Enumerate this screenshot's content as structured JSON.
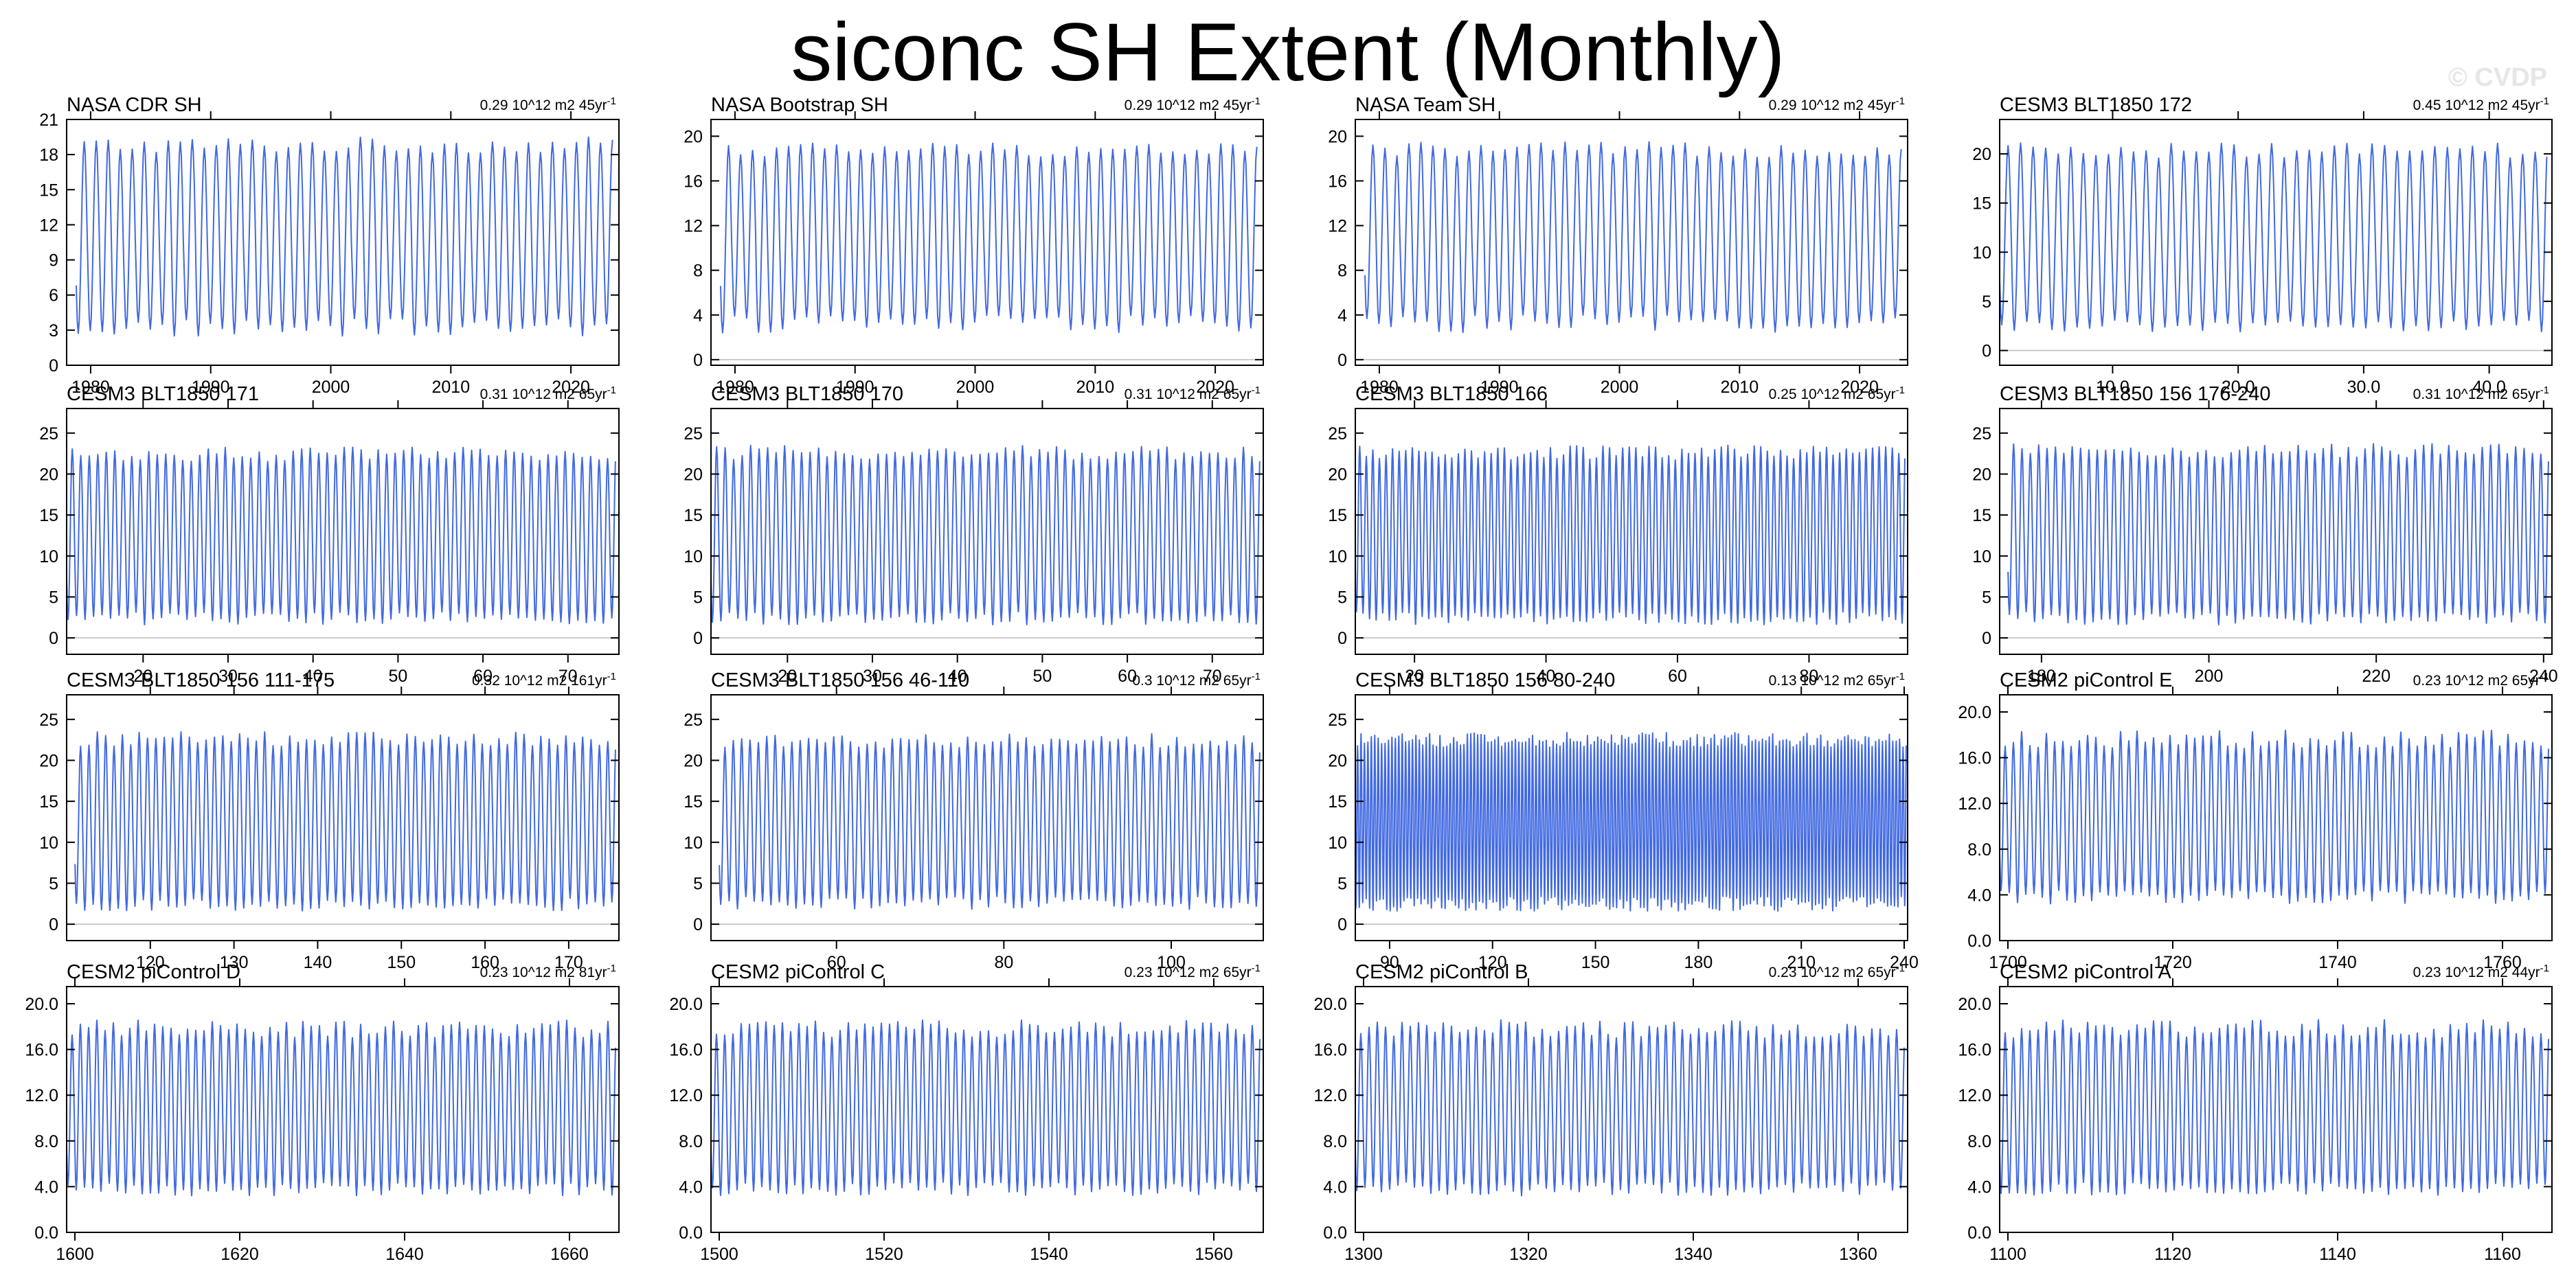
{
  "title": "siconc SH Extent (Monthly)",
  "watermark": "© CVDP",
  "colors": {
    "line": "#4169e1",
    "frame": "#000000",
    "zero_line": "#bbbbbb"
  },
  "chart_data": [
    {
      "type": "line",
      "title": "NASA CDR SH",
      "trend": "0.29 10^12 m2 45yr",
      "trend_sup": "-1",
      "xlim": [
        1978,
        2024
      ],
      "ylim": [
        0,
        21
      ],
      "yticks": [
        0,
        3,
        6,
        9,
        12,
        15,
        18,
        21
      ],
      "ytick_labels": [
        "0",
        "3",
        "6",
        "9",
        "12",
        "15",
        "18",
        "21"
      ],
      "xticks": [
        1980,
        1990,
        2000,
        2010,
        2020
      ],
      "xtick_labels": [
        "1980",
        "1990",
        "2000",
        "2010",
        "2020"
      ],
      "series": {
        "start": 1978.8,
        "end": 2023.5,
        "period": 1,
        "min": 3.2,
        "max": 18.8,
        "max_var": 0.7,
        "min_var": 0.8
      }
    },
    {
      "type": "line",
      "title": "NASA Bootstrap SH",
      "trend": "0.29 10^12 m2 45yr",
      "trend_sup": "-1",
      "xlim": [
        1978,
        2024
      ],
      "ylim": [
        -0.5,
        21.5
      ],
      "yticks": [
        0,
        4,
        8,
        12,
        16,
        20
      ],
      "ytick_labels": [
        "0",
        "4",
        "8",
        "12",
        "16",
        "20"
      ],
      "xticks": [
        1980,
        1990,
        2000,
        2010,
        2020
      ],
      "xtick_labels": [
        "1980",
        "1990",
        "2000",
        "2010",
        "2020"
      ],
      "series": {
        "start": 1978.8,
        "end": 2023.5,
        "period": 1,
        "min": 3.2,
        "max": 18.8,
        "max_var": 0.7,
        "min_var": 0.8
      }
    },
    {
      "type": "line",
      "title": "NASA Team SH",
      "trend": "0.29 10^12 m2 45yr",
      "trend_sup": "-1",
      "xlim": [
        1978,
        2024
      ],
      "ylim": [
        -0.5,
        21.5
      ],
      "yticks": [
        0,
        4,
        8,
        12,
        16,
        20
      ],
      "ytick_labels": [
        "0",
        "4",
        "8",
        "12",
        "16",
        "20"
      ],
      "xticks": [
        1980,
        1990,
        2000,
        2010,
        2020
      ],
      "xtick_labels": [
        "1980",
        "1990",
        "2000",
        "2010",
        "2020"
      ],
      "series": {
        "start": 1978.8,
        "end": 2023.5,
        "period": 1,
        "min": 3.2,
        "max": 18.8,
        "max_var": 0.7,
        "min_var": 0.8
      }
    },
    {
      "type": "line",
      "title": "CESM3 BLT1850 172",
      "trend": "0.45 10^12 m2 45yr",
      "trend_sup": "-1",
      "xlim": [
        1,
        45
      ],
      "ylim": [
        -1.5,
        23.5
      ],
      "yticks": [
        0,
        5,
        10,
        15,
        20
      ],
      "ytick_labels": [
        "0",
        "5",
        "10",
        "15",
        "20"
      ],
      "xticks": [
        10,
        20,
        30,
        40
      ],
      "xtick_labels": [
        "10.0",
        "20.0",
        "30.0",
        "40.0"
      ],
      "series": {
        "start": 1,
        "end": 44.6,
        "period": 1,
        "min": 2.5,
        "max": 20.3,
        "max_var": 0.8,
        "min_var": 0.6
      }
    },
    {
      "type": "line",
      "title": "CESM3 BLT1850 171",
      "trend": "0.31 10^12 m2 65yr",
      "trend_sup": "-1",
      "xlim": [
        11,
        76
      ],
      "ylim": [
        -2,
        28
      ],
      "yticks": [
        0,
        5,
        10,
        15,
        20,
        25
      ],
      "ytick_labels": [
        "0",
        "5",
        "10",
        "15",
        "20",
        "25"
      ],
      "xticks": [
        20,
        30,
        40,
        50,
        60,
        70
      ],
      "xtick_labels": [
        "20",
        "30",
        "40",
        "50",
        "60",
        "70"
      ],
      "series": {
        "start": 11,
        "end": 75.6,
        "period": 1,
        "min": 2.4,
        "max": 22.4,
        "max_var": 0.9,
        "min_var": 0.8
      }
    },
    {
      "type": "line",
      "title": "CESM3 BLT1850 170",
      "trend": "0.31 10^12 m2 65yr",
      "trend_sup": "-1",
      "xlim": [
        11,
        76
      ],
      "ylim": [
        -2,
        28
      ],
      "yticks": [
        0,
        5,
        10,
        15,
        20,
        25
      ],
      "ytick_labels": [
        "0",
        "5",
        "10",
        "15",
        "20",
        "25"
      ],
      "xticks": [
        20,
        30,
        40,
        50,
        60,
        70
      ],
      "xtick_labels": [
        "20",
        "30",
        "40",
        "50",
        "60",
        "70"
      ],
      "series": {
        "start": 11,
        "end": 75.6,
        "period": 1,
        "min": 2.4,
        "max": 22.6,
        "max_var": 0.9,
        "min_var": 0.8
      }
    },
    {
      "type": "line",
      "title": "CESM3 BLT1850 166",
      "trend": "0.25 10^12 m2 65yr",
      "trend_sup": "-1",
      "xlim": [
        11,
        95
      ],
      "ylim": [
        -2,
        28
      ],
      "yticks": [
        0,
        5,
        10,
        15,
        20,
        25
      ],
      "ytick_labels": [
        "0",
        "5",
        "10",
        "15",
        "20",
        "25"
      ],
      "xticks": [
        20,
        40,
        60,
        80
      ],
      "xtick_labels": [
        "20",
        "40",
        "60",
        "80"
      ],
      "series": {
        "start": 11,
        "end": 94.6,
        "period": 1,
        "min": 2.4,
        "max": 22.6,
        "max_var": 0.9,
        "min_var": 0.8
      }
    },
    {
      "type": "line",
      "title": "CESM3 BLT1850 156 176-240",
      "trend": "0.31 10^12 m2 65yr",
      "trend_sup": "-1",
      "xlim": [
        175,
        241
      ],
      "ylim": [
        -2,
        28
      ],
      "yticks": [
        0,
        5,
        10,
        15,
        20,
        25
      ],
      "ytick_labels": [
        "0",
        "5",
        "10",
        "15",
        "20",
        "25"
      ],
      "xticks": [
        180,
        200,
        220,
        240
      ],
      "xtick_labels": [
        "180",
        "200",
        "220",
        "240"
      ],
      "series": {
        "start": 176,
        "end": 240.6,
        "period": 1,
        "min": 2.4,
        "max": 22.8,
        "max_var": 0.9,
        "min_var": 0.8
      }
    },
    {
      "type": "line",
      "title": "CESM3 BLT1850 156 111-175",
      "trend": "0.32 10^12 m2 161yr",
      "trend_sup": "-1",
      "xlim": [
        110,
        176
      ],
      "ylim": [
        -2,
        28
      ],
      "yticks": [
        0,
        5,
        10,
        15,
        20,
        25
      ],
      "ytick_labels": [
        "0",
        "5",
        "10",
        "15",
        "20",
        "25"
      ],
      "xticks": [
        120,
        130,
        140,
        150,
        160,
        170
      ],
      "xtick_labels": [
        "120",
        "130",
        "140",
        "150",
        "160",
        "170"
      ],
      "series": {
        "start": 111,
        "end": 175.6,
        "period": 1,
        "min": 2.4,
        "max": 22.6,
        "max_var": 0.9,
        "min_var": 0.8
      }
    },
    {
      "type": "line",
      "title": "CESM3 BLT1850 156 46-110",
      "trend": "0.3 10^12 m2 65yr",
      "trend_sup": "-1",
      "xlim": [
        45,
        111
      ],
      "ylim": [
        -2,
        28
      ],
      "yticks": [
        0,
        5,
        10,
        15,
        20,
        25
      ],
      "ytick_labels": [
        "0",
        "5",
        "10",
        "15",
        "20",
        "25"
      ],
      "xticks": [
        60,
        80,
        100
      ],
      "xtick_labels": [
        "60",
        "80",
        "100"
      ],
      "series": {
        "start": 46,
        "end": 110.6,
        "period": 1,
        "min": 2.6,
        "max": 22.4,
        "max_var": 0.9,
        "min_var": 0.8
      }
    },
    {
      "type": "line",
      "title": "CESM3 BLT1850 156 80-240",
      "trend": "0.13 10^12 m2 65yr",
      "trend_sup": "-1",
      "xlim": [
        80,
        241
      ],
      "ylim": [
        -2,
        28
      ],
      "yticks": [
        0,
        5,
        10,
        15,
        20,
        25
      ],
      "ytick_labels": [
        "0",
        "5",
        "10",
        "15",
        "20",
        "25"
      ],
      "xticks": [
        90,
        120,
        150,
        180,
        210,
        240
      ],
      "xtick_labels": [
        "90",
        "120",
        "150",
        "180",
        "210",
        "240"
      ],
      "series": {
        "start": 80,
        "end": 240.6,
        "period": 1,
        "min": 2.5,
        "max": 22.5,
        "max_var": 0.9,
        "min_var": 0.9
      }
    },
    {
      "type": "line",
      "title": "CESM2 piControl E",
      "trend": "0.23 10^12 m2 65yr",
      "trend_sup": "-1",
      "xlim": [
        1699,
        1766
      ],
      "ylim": [
        0,
        21.5
      ],
      "yticks": [
        0,
        4,
        8,
        12,
        16,
        20
      ],
      "ytick_labels": [
        "0.0",
        "4.0",
        "8.0",
        "12.0",
        "16.0",
        "20.0"
      ],
      "xticks": [
        1700,
        1720,
        1740,
        1760
      ],
      "xtick_labels": [
        "1700",
        "1720",
        "1740",
        "1760"
      ],
      "series": {
        "start": 1699,
        "end": 1765.6,
        "period": 1,
        "min": 3.8,
        "max": 17.6,
        "max_var": 0.8,
        "min_var": 0.6
      }
    },
    {
      "type": "line",
      "title": "CESM2 piControl D",
      "trend": "0.23 10^12 m2 81yr",
      "trend_sup": "-1",
      "xlim": [
        1599,
        1666
      ],
      "ylim": [
        0,
        21.5
      ],
      "yticks": [
        0,
        4,
        8,
        12,
        16,
        20
      ],
      "ytick_labels": [
        "0.0",
        "4.0",
        "8.0",
        "12.0",
        "16.0",
        "20.0"
      ],
      "xticks": [
        1600,
        1620,
        1640,
        1660
      ],
      "xtick_labels": [
        "1600",
        "1620",
        "1640",
        "1660"
      ],
      "series": {
        "start": 1599,
        "end": 1665.6,
        "period": 1,
        "min": 3.8,
        "max": 17.8,
        "max_var": 0.8,
        "min_var": 0.6
      }
    },
    {
      "type": "line",
      "title": "CESM2 piControl C",
      "trend": "0.23 10^12 m2 65yr",
      "trend_sup": "-1",
      "xlim": [
        1499,
        1566
      ],
      "ylim": [
        0,
        21.5
      ],
      "yticks": [
        0,
        4,
        8,
        12,
        16,
        20
      ],
      "ytick_labels": [
        "0.0",
        "4.0",
        "8.0",
        "12.0",
        "16.0",
        "20.0"
      ],
      "xticks": [
        1500,
        1520,
        1540,
        1560
      ],
      "xtick_labels": [
        "1500",
        "1520",
        "1540",
        "1560"
      ],
      "series": {
        "start": 1499,
        "end": 1565.6,
        "period": 1,
        "min": 3.8,
        "max": 17.8,
        "max_var": 0.8,
        "min_var": 0.6
      }
    },
    {
      "type": "line",
      "title": "CESM2 piControl B",
      "trend": "0.23 10^12 m2 65yr",
      "trend_sup": "-1",
      "xlim": [
        1299,
        1366
      ],
      "ylim": [
        0,
        21.5
      ],
      "yticks": [
        0,
        4,
        8,
        12,
        16,
        20
      ],
      "ytick_labels": [
        "0.0",
        "4.0",
        "8.0",
        "12.0",
        "16.0",
        "20.0"
      ],
      "xticks": [
        1300,
        1320,
        1340,
        1360
      ],
      "xtick_labels": [
        "1300",
        "1320",
        "1340",
        "1360"
      ],
      "series": {
        "start": 1299,
        "end": 1365.6,
        "period": 1,
        "min": 3.8,
        "max": 17.8,
        "max_var": 0.8,
        "min_var": 0.6
      }
    },
    {
      "type": "line",
      "title": "CESM2 piControl A",
      "trend": "0.23 10^12 m2 44yr",
      "trend_sup": "-1",
      "xlim": [
        1099,
        1166
      ],
      "ylim": [
        0,
        21.5
      ],
      "yticks": [
        0,
        4,
        8,
        12,
        16,
        20
      ],
      "ytick_labels": [
        "0.0",
        "4.0",
        "8.0",
        "12.0",
        "16.0",
        "20.0"
      ],
      "xticks": [
        1100,
        1120,
        1140,
        1160
      ],
      "xtick_labels": [
        "1100",
        "1120",
        "1140",
        "1160"
      ],
      "series": {
        "start": 1099,
        "end": 1165.6,
        "period": 1,
        "min": 3.8,
        "max": 17.8,
        "max_var": 0.8,
        "min_var": 0.6
      }
    }
  ]
}
